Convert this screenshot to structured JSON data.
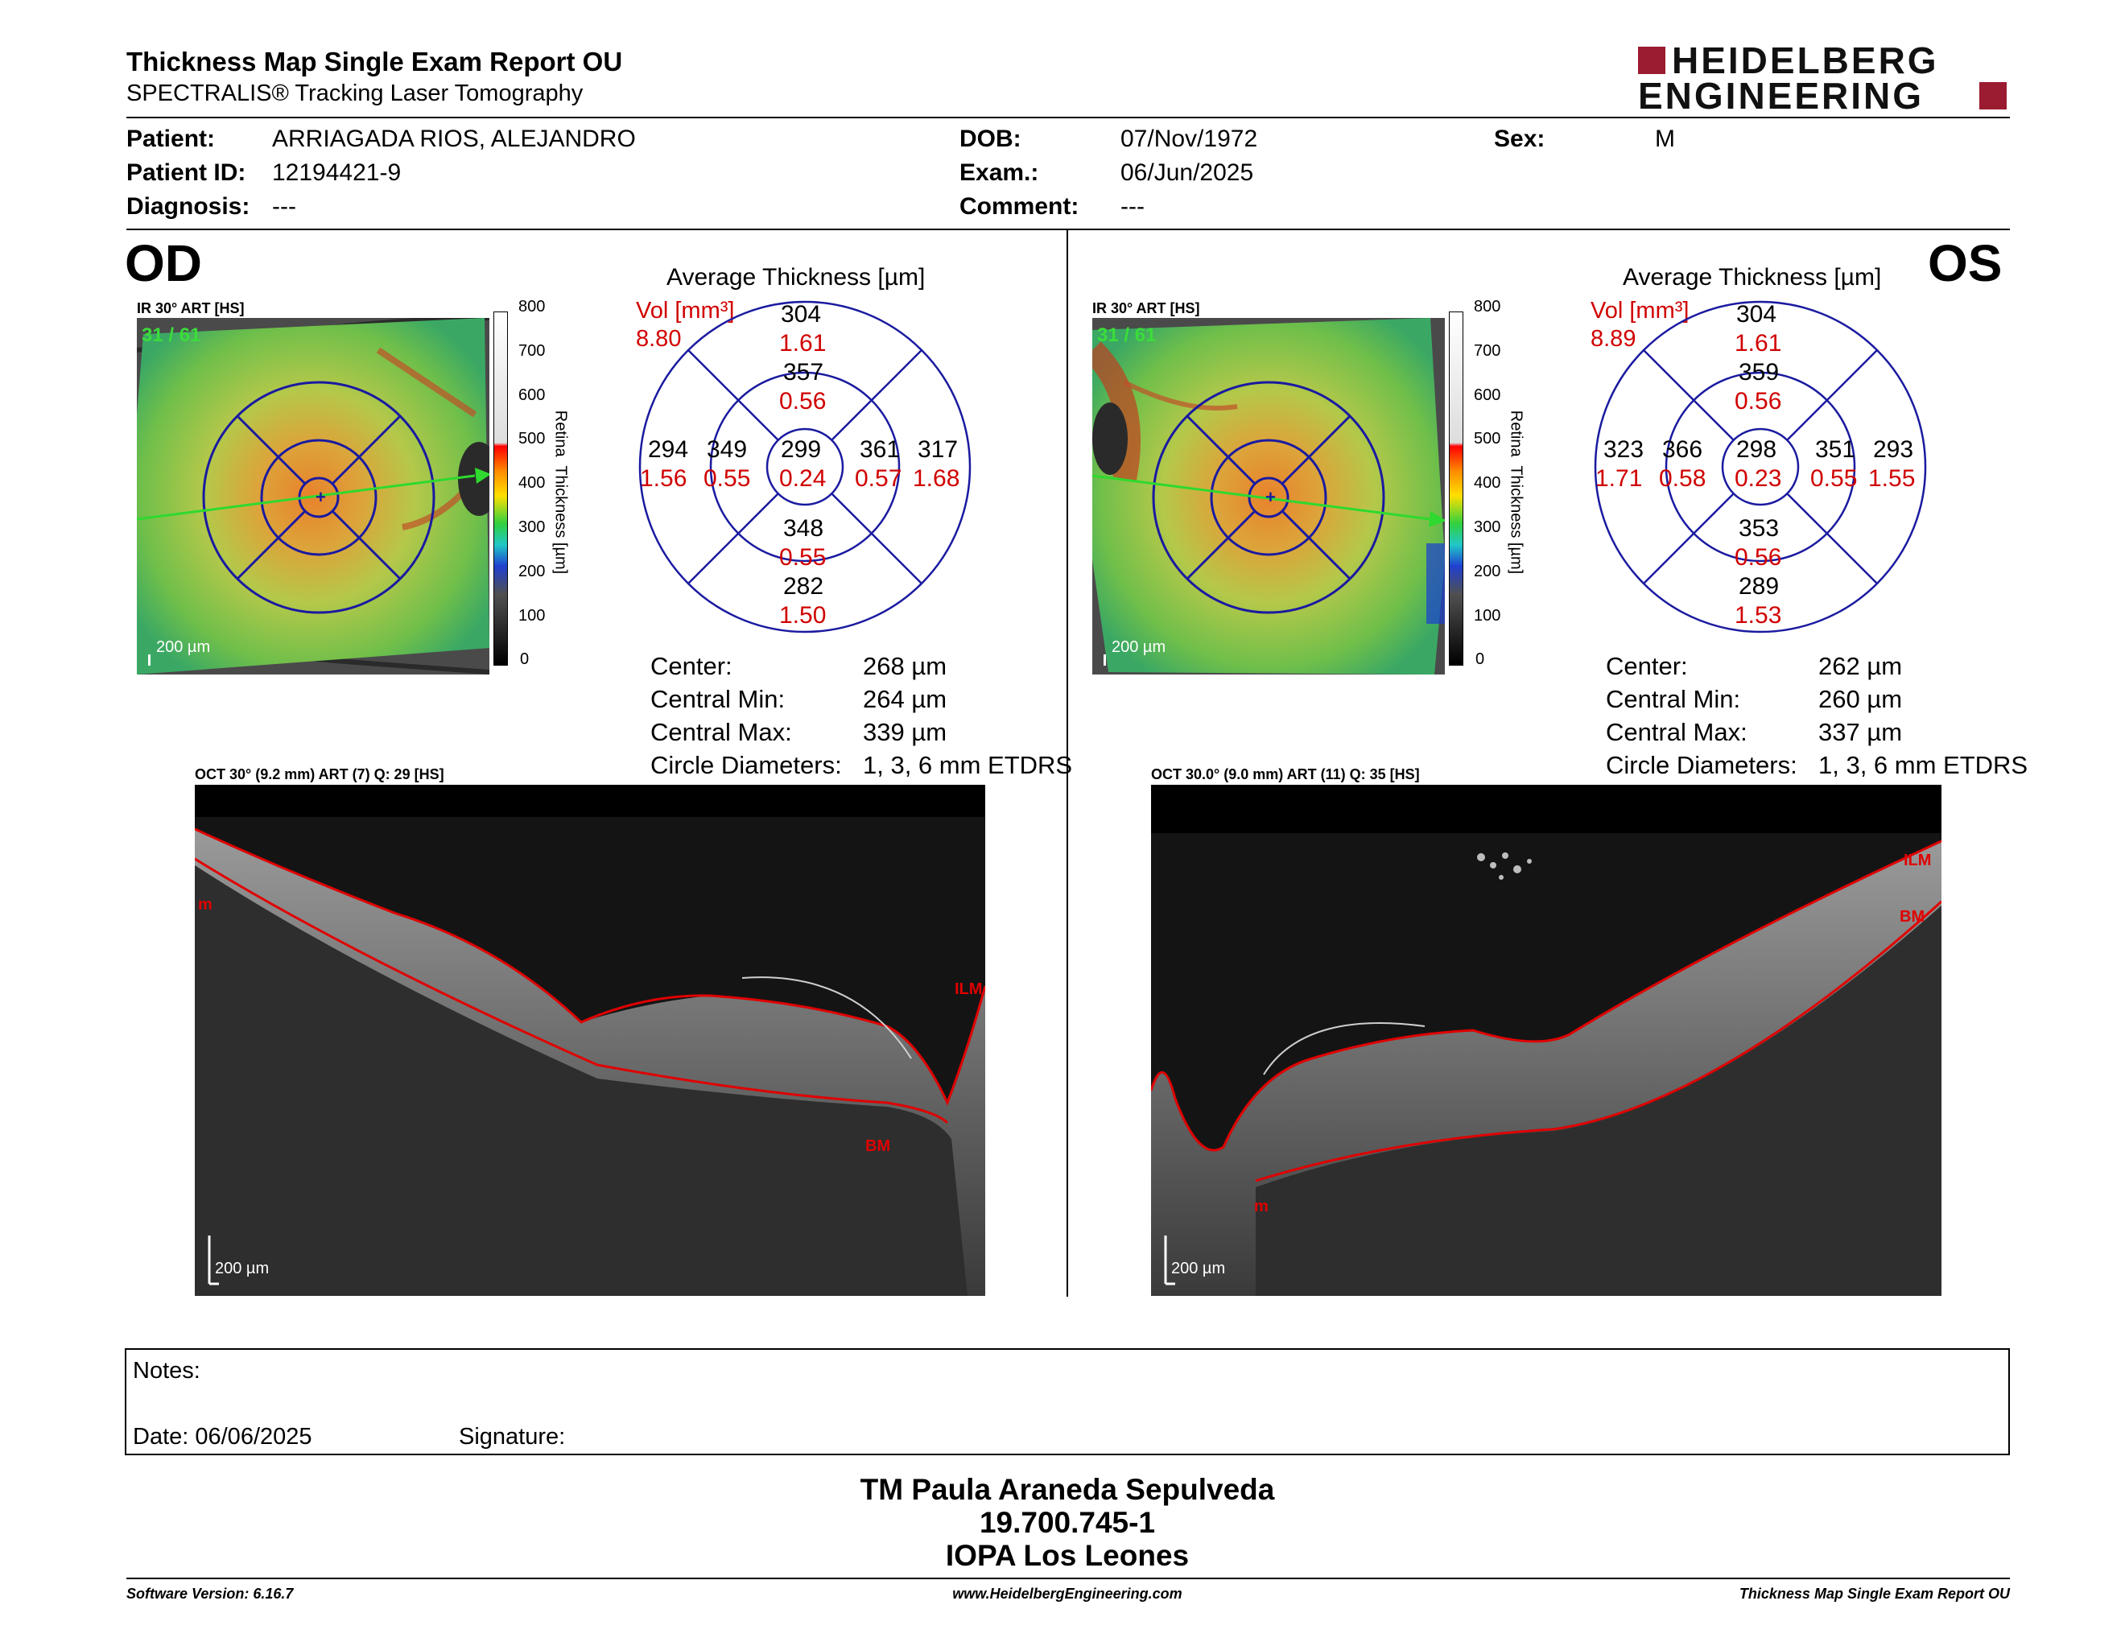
{
  "header": {
    "title": "Thickness Map Single Exam Report OU",
    "subtitle": "SPECTRALIS® Tracking Laser Tomography",
    "logo_line1": "HEIDELBERG",
    "logo_line2": "ENGINEERING"
  },
  "patient": {
    "patient_label": "Patient:",
    "patient_value": "ARRIAGADA RIOS, ALEJANDRO",
    "id_label": "Patient ID:",
    "id_value": "12194421-9",
    "diagnosis_label": "Diagnosis:",
    "diagnosis_value": "---",
    "dob_label": "DOB:",
    "dob_value": "07/Nov/1972",
    "exam_label": "Exam.:",
    "exam_value": "06/Jun/2025",
    "comment_label": "Comment:",
    "comment_value": "---",
    "sex_label": "Sex:",
    "sex_value": "M"
  },
  "od": {
    "eye": "OD",
    "ir_label": "IR 30° ART [HS]",
    "frame": "31 / 61",
    "scale": "200 µm",
    "avg_title": "Average Thickness [µm]",
    "vol_label": "Vol [mm³]",
    "vol_value": "8.80",
    "grid": {
      "top_outer": "304",
      "top_outer_vol": "1.61",
      "top_inner": "357",
      "top_inner_vol": "0.56",
      "left_outer": "294",
      "left_outer_vol": "1.56",
      "left_inner": "349",
      "left_inner_vol": "0.55",
      "center": "299",
      "center_vol": "0.24",
      "right_inner": "361",
      "right_inner_vol": "0.57",
      "right_outer": "317",
      "right_outer_vol": "1.68",
      "bottom_inner": "348",
      "bottom_inner_vol": "0.55",
      "bottom_outer": "282",
      "bottom_outer_vol": "1.50"
    },
    "stats": {
      "center_label": "Center:",
      "center_value": "268 µm",
      "min_label": "Central Min:",
      "min_value": "264 µm",
      "max_label": "Central Max:",
      "max_value": "339 µm",
      "diam_label": "Circle Diameters:",
      "diam_value": "1, 3, 6 mm ETDRS"
    },
    "oct_label": "OCT 30° (9.2 mm) ART (7) Q: 29 [HS]",
    "oct_scale": "200 µm",
    "ilm": "ILM",
    "bm": "BM",
    "m": "m"
  },
  "os": {
    "eye": "OS",
    "ir_label": "IR 30° ART [HS]",
    "frame": "31 / 61",
    "scale": "200 µm",
    "avg_title": "Average Thickness [µm]",
    "vol_label": "Vol [mm³]",
    "vol_value": "8.89",
    "grid": {
      "top_outer": "304",
      "top_outer_vol": "1.61",
      "top_inner": "359",
      "top_inner_vol": "0.56",
      "left_outer": "323",
      "left_outer_vol": "1.71",
      "left_inner": "366",
      "left_inner_vol": "0.58",
      "center": "298",
      "center_vol": "0.23",
      "right_inner": "351",
      "right_inner_vol": "0.55",
      "right_outer": "293",
      "right_outer_vol": "1.55",
      "bottom_inner": "353",
      "bottom_inner_vol": "0.56",
      "bottom_outer": "289",
      "bottom_outer_vol": "1.53"
    },
    "stats": {
      "center_label": "Center:",
      "center_value": "262 µm",
      "min_label": "Central Min:",
      "min_value": "260 µm",
      "max_label": "Central Max:",
      "max_value": "337 µm",
      "diam_label": "Circle Diameters:",
      "diam_value": "1, 3, 6 mm ETDRS"
    },
    "oct_label": "OCT 30.0° (9.0 mm) ART (11) Q: 35 [HS]",
    "oct_scale": "200 µm",
    "ilm": "ILM",
    "bm": "BM",
    "m": "m"
  },
  "colorbar": {
    "ticks": [
      "800",
      "700",
      "600",
      "500",
      "400",
      "300",
      "200",
      "100",
      "0"
    ],
    "title": "Retina  Thickness [µm]"
  },
  "notes": {
    "notes_label": "Notes:",
    "date_label": "Date: 06/06/2025",
    "signature_label": "Signature:"
  },
  "signer": {
    "name": "TM Paula Araneda Sepulveda",
    "rut": "19.700.745-1",
    "clinic": "IOPA Los Leones"
  },
  "footer": {
    "software": "Software Version: 6.16.7",
    "website": "www.HeidelbergEngineering.com",
    "report": "Thickness Map Single Exam Report OU"
  },
  "colors": {
    "etdrs_grid": "#1a1aa0",
    "volume_red": "#d00000",
    "logo_red": "#9b1b30",
    "scan_line": "#2fd92f",
    "segmentation": "#e00000"
  }
}
